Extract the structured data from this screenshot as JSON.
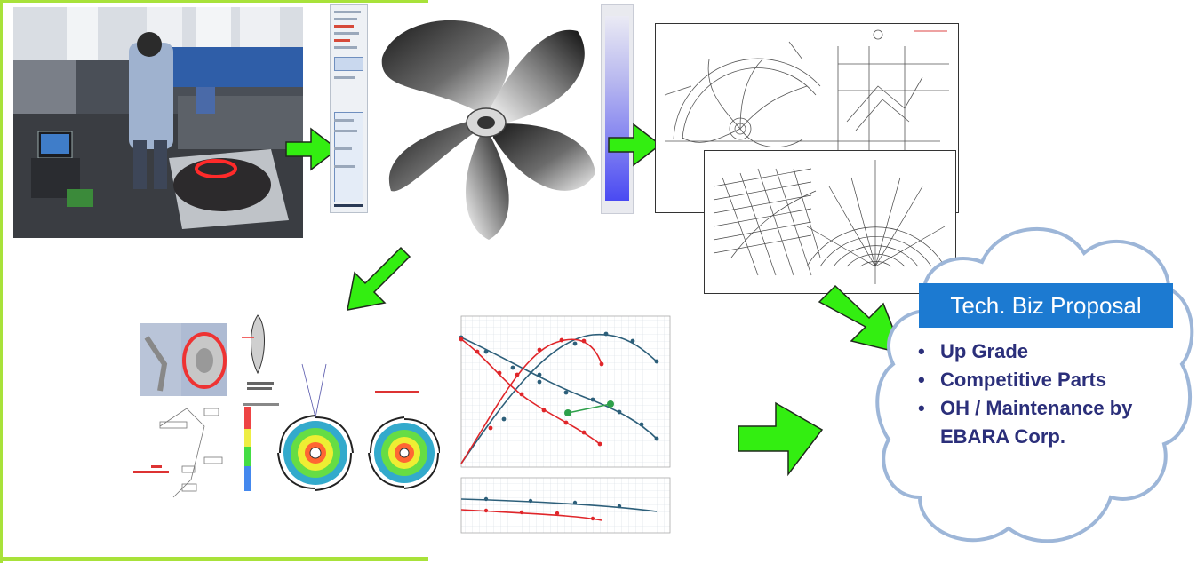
{
  "proposal": {
    "title": "Tech. Biz Proposal",
    "items": [
      {
        "bullet": "•",
        "text": "Up Grade"
      },
      {
        "bullet": "•",
        "text": "Competitive Parts"
      },
      {
        "bullet": "•",
        "text": "OH / Maintenance by EBARA Corp."
      }
    ]
  },
  "colors": {
    "frame": "#a8e23a",
    "arrow": "#33ee11",
    "arrow_outline": "#1f2a1c",
    "title_bg": "#1c7ad1",
    "bullet_text": "#2b2f7a",
    "cloud_outline": "#9db6d8"
  },
  "icons": {
    "arrows": [
      "arrow-right-icon",
      "arrow-right-icon",
      "arrow-down-left-icon",
      "arrow-down-right-icon",
      "arrow-up-right-icon"
    ]
  }
}
